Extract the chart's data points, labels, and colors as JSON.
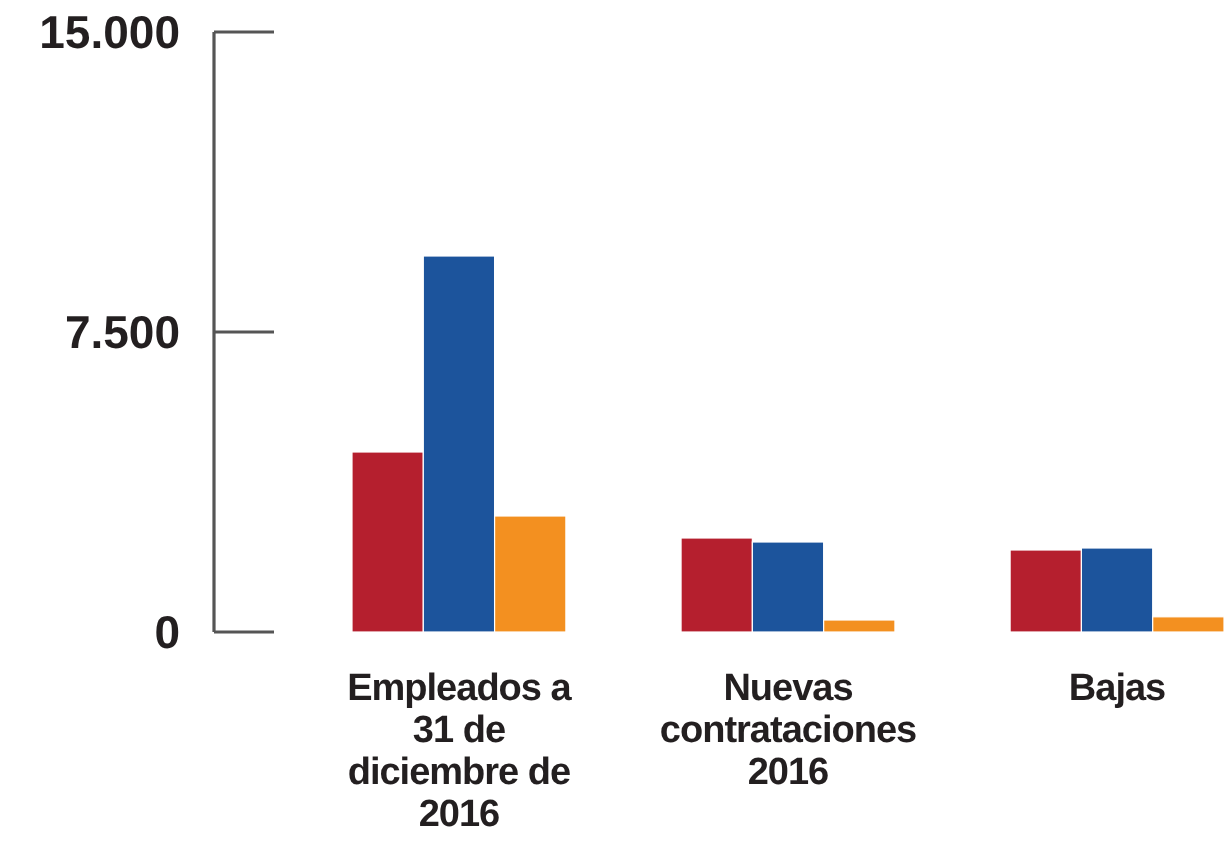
{
  "chart_data": {
    "type": "bar",
    "categories": [
      "Empleados a 31 de diciembre de 2016",
      "Nuevas contrataciones 2016",
      "Bajas"
    ],
    "series": [
      {
        "color": "#b51f2e",
        "values": [
          4500,
          2350,
          2050
        ]
      },
      {
        "color": "#1c549c",
        "values": [
          9400,
          2250,
          2100
        ]
      },
      {
        "color": "#f39020",
        "values": [
          2900,
          300,
          380
        ]
      }
    ],
    "ylim": [
      0,
      15000
    ],
    "yticks": [
      {
        "value": 0,
        "label": "0"
      },
      {
        "value": 7500,
        "label": "7.500"
      },
      {
        "value": 15000,
        "label": "15.000"
      }
    ],
    "grid": false
  }
}
